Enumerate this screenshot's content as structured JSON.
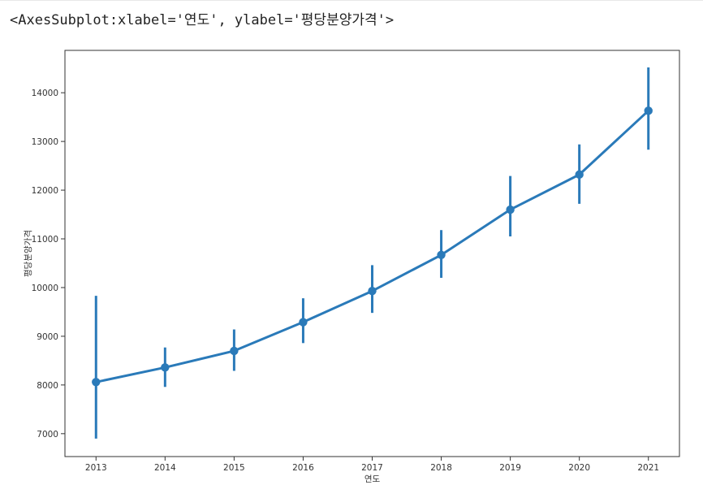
{
  "output_text": "<AxesSubplot:xlabel='연도', ylabel='평당분양가격'>",
  "chart_data": {
    "type": "line",
    "xlabel": "연도",
    "ylabel": "평당분양가격",
    "categories": [
      "2013",
      "2014",
      "2015",
      "2016",
      "2017",
      "2018",
      "2019",
      "2020",
      "2021"
    ],
    "series": [
      {
        "values": [
          8060,
          8360,
          8700,
          9290,
          9930,
          10670,
          11600,
          12320,
          13630
        ],
        "ci_low": [
          6900,
          7960,
          8290,
          8860,
          9480,
          10200,
          11050,
          11720,
          12830
        ],
        "ci_high": [
          9830,
          8770,
          9140,
          9780,
          10460,
          11180,
          12290,
          12940,
          14520
        ],
        "color": "#2a7ab9"
      }
    ],
    "yticks": [
      7000,
      8000,
      9000,
      10000,
      11000,
      12000,
      13000,
      14000
    ],
    "ylim": [
      6530,
      14870
    ],
    "grid": false
  }
}
